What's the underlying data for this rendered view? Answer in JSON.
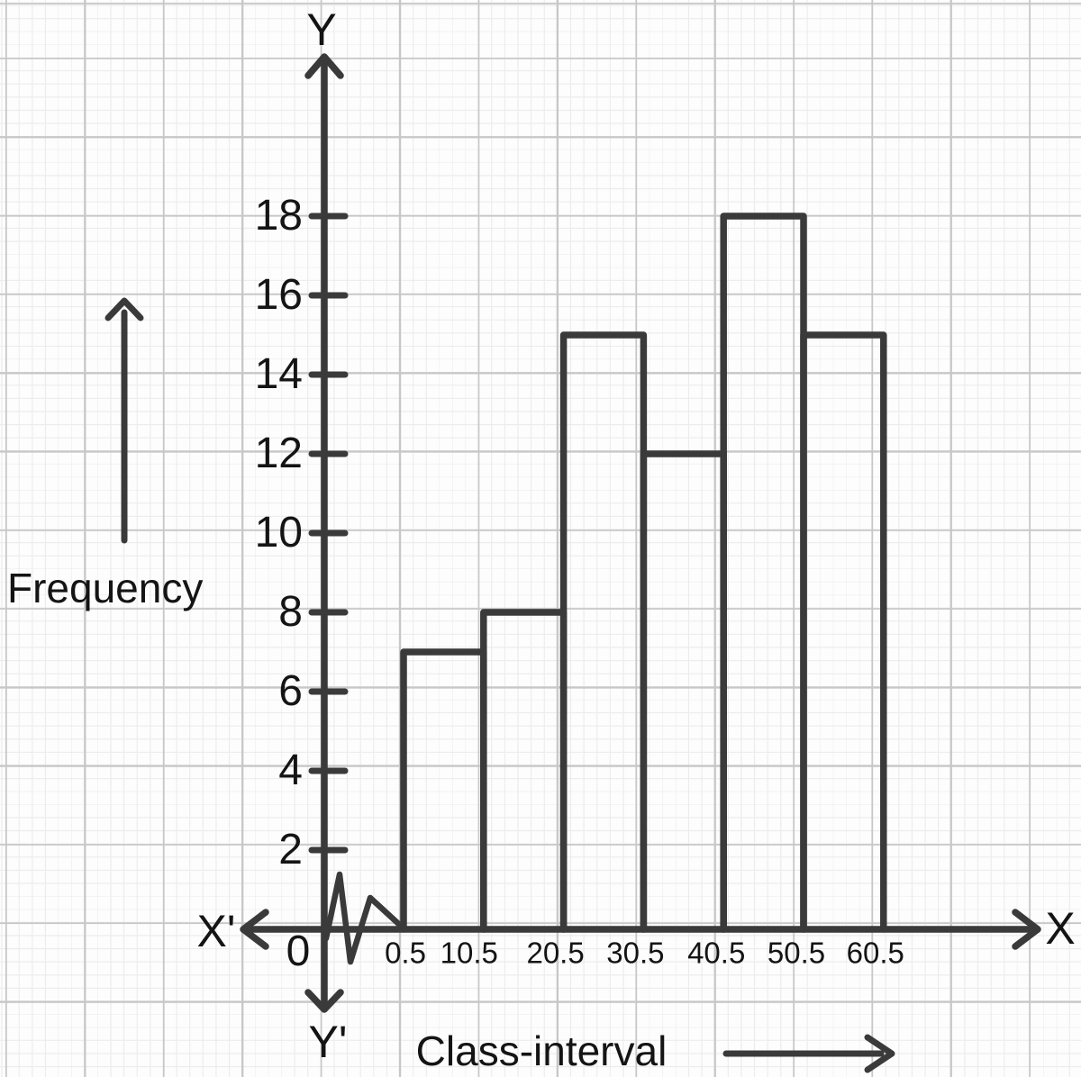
{
  "figure": {
    "background": "#fdfdfd",
    "grid_minor_color": "#ececec",
    "grid_major_color": "#c7c7c7",
    "stroke_color": "#3a3a3a",
    "text_color": "#141414"
  },
  "chart_data": {
    "type": "bar",
    "subtype": "histogram",
    "title": "",
    "xlabel": "Class-interval",
    "ylabel": "Frequency",
    "categories": [
      "0.5-10.5",
      "10.5-20.5",
      "20.5-30.5",
      "30.5-40.5",
      "40.5-50.5",
      "50.5-60.5"
    ],
    "class_boundaries": [
      0.5,
      10.5,
      20.5,
      30.5,
      40.5,
      50.5,
      60.5
    ],
    "values": [
      7,
      8,
      15,
      12,
      18,
      15
    ],
    "x_tick_labels": [
      "0.5",
      "10.5",
      "20.5",
      "30.5",
      "40.5",
      "50.5",
      "60.5"
    ],
    "y_ticks": [
      2,
      4,
      6,
      8,
      10,
      12,
      14,
      16,
      18
    ],
    "ylim": [
      0,
      20
    ],
    "grid": "graph-paper background",
    "legend": "none",
    "bar_fill": "transparent",
    "axis_annotations": {
      "y_positive": "Y",
      "y_negative": "Y'",
      "x_positive": "X",
      "x_negative": "X'",
      "origin": "0",
      "x_axis_break": "zigzag squiggle between origin and 0.5"
    }
  }
}
